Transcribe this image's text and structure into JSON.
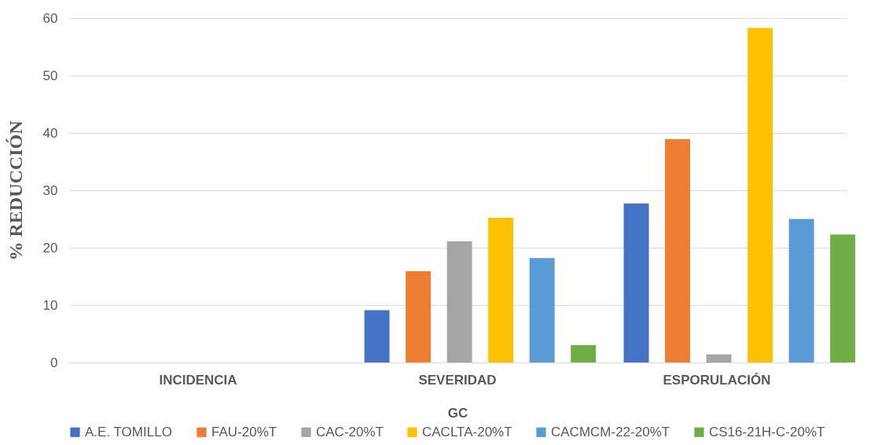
{
  "chart_data": {
    "type": "bar",
    "xlabel": "GC",
    "ylabel": "% REDUCCIÓN",
    "categories": [
      "INCIDENCIA",
      "SEVERIDAD",
      "ESPORULACIÓN"
    ],
    "series": [
      {
        "name": "A.E. TOMILLO",
        "color": "#4472c4",
        "values": [
          0,
          9.1,
          27.7
        ]
      },
      {
        "name": "FAU-20%T",
        "color": "#ed7d31",
        "values": [
          0,
          15.9,
          38.9
        ]
      },
      {
        "name": "CAC-20%T",
        "color": "#a5a5a5",
        "values": [
          0,
          21.1,
          1.4
        ]
      },
      {
        "name": "CACLTA-20%T",
        "color": "#ffc000",
        "values": [
          0,
          25.2,
          58.3
        ]
      },
      {
        "name": "CACMCM-22-20%T",
        "color": "#5b9bd5",
        "values": [
          0,
          18.2,
          25.0
        ]
      },
      {
        "name": "CS16-21H-C-20%T",
        "color": "#70ad47",
        "values": [
          0,
          3.0,
          22.3
        ]
      }
    ],
    "ylim": [
      0,
      60
    ],
    "yticks": [
      0,
      10,
      20,
      30,
      40,
      50,
      60
    ],
    "grid": "y",
    "legend": "bottom"
  }
}
